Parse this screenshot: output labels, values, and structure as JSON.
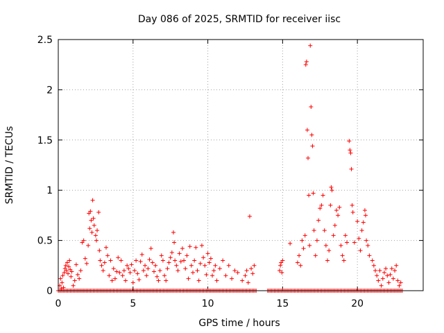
{
  "chart_data": {
    "type": "scatter",
    "title": "Day 086 of 2025, SRMTID for receiver iisc",
    "xlabel": "GPS time / hours",
    "ylabel": "SRMTID / TECUs",
    "xlim": [
      0,
      24.4
    ],
    "ylim": [
      0,
      2.5
    ],
    "x_ticks": [
      0,
      5,
      10,
      15,
      20
    ],
    "y_ticks": [
      0,
      0.5,
      1,
      1.5,
      2,
      2.5
    ],
    "x_tick_labels": [
      "0",
      "5",
      "10",
      "15",
      "20"
    ],
    "y_tick_labels": [
      "0",
      "0.5",
      "1",
      "1.5",
      "2",
      "2.5"
    ],
    "grid": true,
    "marker": "plus",
    "color": "#ff0000",
    "series": [
      {
        "name": "SRMTID",
        "points": [
          [
            0.1,
            0.05
          ],
          [
            0.15,
            0.12
          ],
          [
            0.2,
            0.02
          ],
          [
            0.25,
            0.08
          ],
          [
            0.3,
            0.15
          ],
          [
            0.35,
            0.03
          ],
          [
            0.4,
            0.18
          ],
          [
            0.45,
            0.22
          ],
          [
            0.5,
            0.25
          ],
          [
            0.55,
            0.2
          ],
          [
            0.6,
            0.28
          ],
          [
            0.65,
            0.17
          ],
          [
            0.7,
            0.24
          ],
          [
            0.75,
            0.3
          ],
          [
            0.8,
            0.21
          ],
          [
            0.85,
            0.14
          ],
          [
            0.9,
            0.19
          ],
          [
            1.0,
            0.05
          ],
          [
            1.1,
            0.1
          ],
          [
            1.2,
            0.26
          ],
          [
            1.3,
            0.16
          ],
          [
            1.4,
            0.12
          ],
          [
            1.5,
            0.2
          ],
          [
            1.6,
            0.48
          ],
          [
            1.7,
            0.5
          ],
          [
            1.8,
            0.32
          ],
          [
            1.9,
            0.27
          ],
          [
            2.0,
            0.45
          ],
          [
            2.05,
            0.77
          ],
          [
            2.1,
            0.62
          ],
          [
            2.15,
            0.79
          ],
          [
            2.2,
            0.7
          ],
          [
            2.25,
            0.58
          ],
          [
            2.3,
            0.9
          ],
          [
            2.35,
            0.72
          ],
          [
            2.4,
            0.65
          ],
          [
            2.5,
            0.55
          ],
          [
            2.55,
            0.5
          ],
          [
            2.6,
            0.6
          ],
          [
            2.7,
            0.78
          ],
          [
            2.75,
            0.4
          ],
          [
            2.8,
            0.3
          ],
          [
            2.9,
            0.25
          ],
          [
            3.0,
            0.2
          ],
          [
            3.1,
            0.28
          ],
          [
            3.2,
            0.43
          ],
          [
            3.3,
            0.35
          ],
          [
            3.4,
            0.15
          ],
          [
            3.5,
            0.3
          ],
          [
            3.6,
            0.1
          ],
          [
            3.7,
            0.22
          ],
          [
            3.8,
            0.12
          ],
          [
            3.9,
            0.19
          ],
          [
            4.0,
            0.33
          ],
          [
            4.1,
            0.18
          ],
          [
            4.2,
            0.3
          ],
          [
            4.3,
            0.15
          ],
          [
            4.4,
            0.2
          ],
          [
            4.5,
            0.1
          ],
          [
            4.6,
            0.25
          ],
          [
            4.7,
            0.22
          ],
          [
            4.8,
            0.18
          ],
          [
            4.9,
            0.26
          ],
          [
            5.0,
            0.08
          ],
          [
            5.1,
            0.2
          ],
          [
            5.2,
            0.3
          ],
          [
            5.3,
            0.17
          ],
          [
            5.4,
            0.11
          ],
          [
            5.5,
            0.29
          ],
          [
            5.6,
            0.36
          ],
          [
            5.7,
            0.2
          ],
          [
            5.8,
            0.25
          ],
          [
            5.9,
            0.15
          ],
          [
            6.0,
            0.22
          ],
          [
            6.1,
            0.31
          ],
          [
            6.2,
            0.42
          ],
          [
            6.3,
            0.28
          ],
          [
            6.4,
            0.19
          ],
          [
            6.5,
            0.25
          ],
          [
            6.6,
            0.14
          ],
          [
            6.7,
            0.1
          ],
          [
            6.8,
            0.2
          ],
          [
            6.9,
            0.35
          ],
          [
            7.0,
            0.3
          ],
          [
            7.1,
            0.15
          ],
          [
            7.2,
            0.1
          ],
          [
            7.3,
            0.22
          ],
          [
            7.4,
            0.28
          ],
          [
            7.5,
            0.33
          ],
          [
            7.6,
            0.38
          ],
          [
            7.7,
            0.58
          ],
          [
            7.75,
            0.48
          ],
          [
            7.8,
            0.3
          ],
          [
            7.9,
            0.25
          ],
          [
            8.0,
            0.2
          ],
          [
            8.1,
            0.37
          ],
          [
            8.2,
            0.29
          ],
          [
            8.3,
            0.42
          ],
          [
            8.4,
            0.3
          ],
          [
            8.5,
            0.22
          ],
          [
            8.6,
            0.35
          ],
          [
            8.7,
            0.12
          ],
          [
            8.8,
            0.44
          ],
          [
            8.9,
            0.25
          ],
          [
            9.0,
            0.18
          ],
          [
            9.1,
            0.3
          ],
          [
            9.2,
            0.43
          ],
          [
            9.3,
            0.2
          ],
          [
            9.4,
            0.1
          ],
          [
            9.5,
            0.27
          ],
          [
            9.6,
            0.45
          ],
          [
            9.7,
            0.33
          ],
          [
            9.8,
            0.25
          ],
          [
            9.9,
            0.16
          ],
          [
            10.0,
            0.37
          ],
          [
            10.1,
            0.28
          ],
          [
            10.2,
            0.32
          ],
          [
            10.3,
            0.15
          ],
          [
            10.4,
            0.2
          ],
          [
            10.5,
            0.25
          ],
          [
            10.6,
            0.1
          ],
          [
            10.8,
            0.22
          ],
          [
            11.0,
            0.3
          ],
          [
            11.2,
            0.15
          ],
          [
            11.4,
            0.25
          ],
          [
            11.6,
            0.12
          ],
          [
            11.8,
            0.2
          ],
          [
            12.0,
            0.18
          ],
          [
            12.3,
            0.1
          ],
          [
            12.5,
            0.15
          ],
          [
            12.6,
            0.2
          ],
          [
            12.7,
            0.08
          ],
          [
            12.8,
            0.74
          ],
          [
            12.9,
            0.22
          ],
          [
            13.0,
            0.17
          ],
          [
            13.1,
            0.25
          ],
          [
            14.8,
            0.2
          ],
          [
            14.85,
            0.25
          ],
          [
            14.9,
            0.28
          ],
          [
            14.95,
            0.18
          ],
          [
            15.0,
            0.3
          ],
          [
            15.5,
            0.47
          ],
          [
            16.0,
            0.28
          ],
          [
            16.1,
            0.35
          ],
          [
            16.2,
            0.25
          ],
          [
            16.3,
            0.5
          ],
          [
            16.4,
            0.42
          ],
          [
            16.5,
            0.55
          ],
          [
            16.55,
            2.25
          ],
          [
            16.6,
            2.28
          ],
          [
            16.65,
            1.6
          ],
          [
            16.7,
            1.32
          ],
          [
            16.75,
            0.95
          ],
          [
            16.8,
            0.45
          ],
          [
            16.85,
            2.44
          ],
          [
            16.9,
            1.83
          ],
          [
            16.95,
            1.55
          ],
          [
            17.0,
            1.44
          ],
          [
            17.05,
            0.97
          ],
          [
            17.1,
            0.6
          ],
          [
            17.2,
            0.35
          ],
          [
            17.3,
            0.5
          ],
          [
            17.4,
            0.7
          ],
          [
            17.5,
            0.82
          ],
          [
            17.6,
            0.85
          ],
          [
            17.7,
            0.95
          ],
          [
            17.8,
            0.6
          ],
          [
            17.9,
            0.45
          ],
          [
            18.0,
            0.3
          ],
          [
            18.1,
            0.4
          ],
          [
            18.2,
            0.85
          ],
          [
            18.25,
            1.03
          ],
          [
            18.3,
            1.0
          ],
          [
            18.4,
            0.55
          ],
          [
            18.5,
            0.65
          ],
          [
            18.6,
            0.8
          ],
          [
            18.7,
            0.75
          ],
          [
            18.8,
            0.83
          ],
          [
            18.9,
            0.45
          ],
          [
            19.0,
            0.35
          ],
          [
            19.1,
            0.3
          ],
          [
            19.2,
            0.55
          ],
          [
            19.3,
            0.48
          ],
          [
            19.45,
            1.49
          ],
          [
            19.5,
            1.4
          ],
          [
            19.55,
            1.37
          ],
          [
            19.6,
            1.21
          ],
          [
            19.65,
            0.85
          ],
          [
            19.7,
            0.78
          ],
          [
            19.8,
            0.48
          ],
          [
            20.0,
            0.69
          ],
          [
            20.1,
            0.52
          ],
          [
            20.2,
            0.4
          ],
          [
            20.3,
            0.6
          ],
          [
            20.4,
            0.68
          ],
          [
            20.5,
            0.8
          ],
          [
            20.55,
            0.75
          ],
          [
            20.6,
            0.5
          ],
          [
            20.7,
            0.45
          ],
          [
            20.8,
            0.35
          ],
          [
            21.0,
            0.3
          ],
          [
            21.1,
            0.25
          ],
          [
            21.2,
            0.2
          ],
          [
            21.3,
            0.15
          ],
          [
            21.4,
            0.1
          ],
          [
            21.5,
            0.2
          ],
          [
            21.6,
            0.05
          ],
          [
            21.7,
            0.12
          ],
          [
            21.8,
            0.18
          ],
          [
            21.9,
            0.22
          ],
          [
            22.0,
            0.15
          ],
          [
            22.1,
            0.08
          ],
          [
            22.2,
            0.16
          ],
          [
            22.3,
            0.22
          ],
          [
            22.4,
            0.12
          ],
          [
            22.5,
            0.2
          ],
          [
            22.6,
            0.25
          ],
          [
            22.7,
            0.1
          ],
          [
            22.8,
            0.05
          ],
          [
            22.9,
            0.08
          ]
        ],
        "zero_band_ranges": [
          [
            0.0,
            13.3
          ],
          [
            14.0,
            23.0
          ]
        ]
      }
    ]
  }
}
